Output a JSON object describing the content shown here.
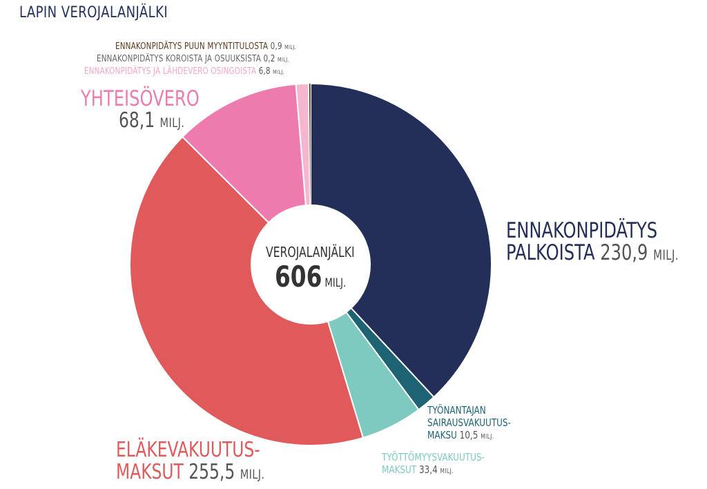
{
  "title": "LAPIN VEROJALANJÄLKI",
  "center": {
    "label": "VEROJALANJÄLKI",
    "value": "606",
    "unit": "MILJ."
  },
  "colors": {
    "title": "#23305e",
    "value_text": "#555555"
  },
  "chart_data": {
    "type": "pie",
    "title": "LAPIN VEROJALANJÄLKI",
    "unit": "MILJ.",
    "total": 606,
    "donut": true,
    "slices": [
      {
        "label": "ENNAKONPIDÄTYS PALKOISTA",
        "value": 230.9,
        "display": "230,9",
        "color": "#232f59"
      },
      {
        "label": "TYÖNANTAJAN SAIRAUSVAKUUTUS-MAKSU",
        "value": 10.5,
        "display": "10,5",
        "color": "#1e6374"
      },
      {
        "label": "TYÖTTÖMYYSVAKUUTUS-MAKSUT",
        "value": 33.4,
        "display": "33,4",
        "color": "#7ecac0"
      },
      {
        "label": "ELÄKEVAKUUTUS-MAKSUT",
        "value": 255.5,
        "display": "255,5",
        "color": "#e05a5b"
      },
      {
        "label": "YHTEISÖVERO",
        "value": 68.1,
        "display": "68,1",
        "color": "#ee7bad"
      },
      {
        "label": "ENNAKONPIDÄTYS JA LÄHDEVERO OSINGOISTA",
        "value": 6.8,
        "display": "6,8",
        "color": "#f6b6cf"
      },
      {
        "label": "ENNAKONPIDÄTYS KOROISTA JA OSUUKSISTA",
        "value": 0.2,
        "display": "0,2",
        "color": "#888888"
      },
      {
        "label": "ENNAKONPIDÄTYS PUUN MYYNTITULOSTA",
        "value": 0.9,
        "display": "0,9",
        "color": "#5a3a1c"
      }
    ]
  },
  "labels": {
    "palkoista": {
      "line1": "ENNAKONPIDÄTYS",
      "line2": "PALKOISTA",
      "value": "230,9",
      "unit": "MILJ."
    },
    "sairaus": {
      "line1": "TYÖNANTAJAN",
      "line2": "SAIRAUSVAKUUTUS-",
      "line3": "MAKSU",
      "value": "10,5",
      "unit": "MILJ."
    },
    "tyottomyys": {
      "line1": "TYÖTTÖMYYSVAKUUTUS-",
      "line2": "MAKSUT",
      "value": "33,4",
      "unit": "MILJ."
    },
    "elake": {
      "line1": "ELÄKEVAKUUTUS-",
      "line2": "MAKSUT",
      "value": "255,5",
      "unit": "MILJ."
    },
    "yhteisovero": {
      "line1": "YHTEISÖVERO",
      "value": "68,1",
      "unit": "MILJ."
    },
    "osingot": {
      "name": "ENNAKONPIDÄTYS JA LÄHDEVERO OSINGOISTA",
      "value": "6,8",
      "unit": "MILJ."
    },
    "korot": {
      "name": "ENNAKONPIDÄTYS KOROISTA JA OSUUKSISTA",
      "value": "0,2",
      "unit": "MILJ."
    },
    "puu": {
      "name": "ENNAKONPIDÄTYS PUUN MYYNTITULOSTA",
      "value": "0,9",
      "unit": "MILJ."
    }
  }
}
